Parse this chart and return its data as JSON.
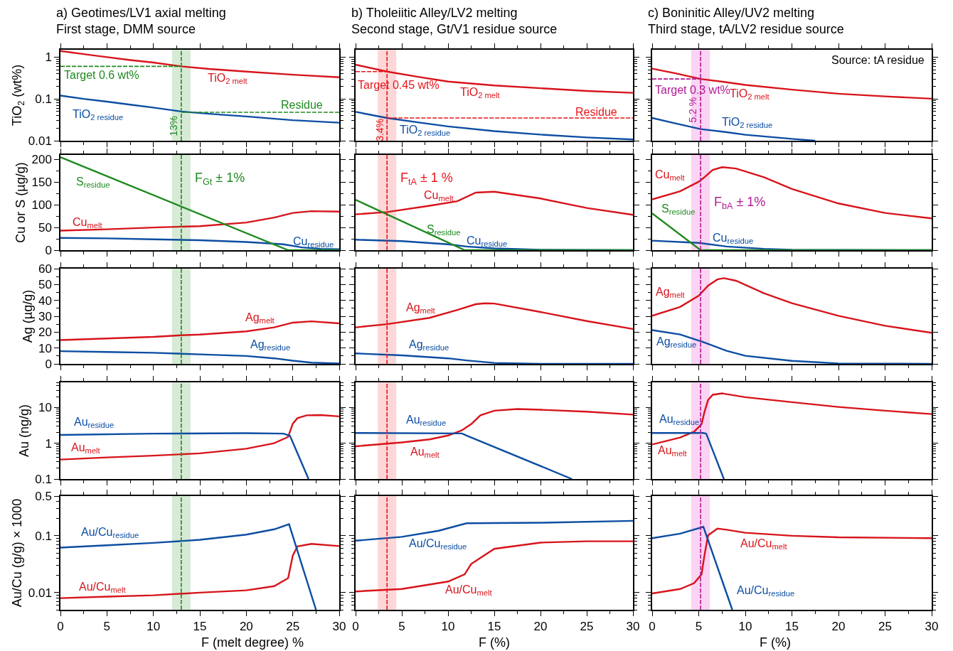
{
  "chart_data": [
    {
      "type": "line",
      "title": "a) Geotimes/LV1 axial melting",
      "subtitle": "First stage, DMM source",
      "ylabel": "TiO$_{2}$ (wt%)",
      "log": true,
      "xlim": [
        0,
        30
      ],
      "xticks": [
        0,
        5,
        10,
        15,
        20,
        25,
        30
      ],
      "ylim": [
        0.01,
        1.5
      ],
      "yticks": [
        0.01,
        0.1,
        1
      ],
      "tick_labels": "y",
      "series": [
        {
          "name": "TiO$_{2 melt}$",
          "color": "#d7141b",
          "x": [
            0,
            2.5,
            5,
            7.5,
            10,
            13,
            16,
            20,
            25,
            30
          ],
          "values": [
            1.4,
            1.18,
            1.0,
            0.85,
            0.74,
            0.6,
            0.52,
            0.45,
            0.38,
            0.33
          ]
        },
        {
          "name": "TiO$_{2 residue}$",
          "color": "#0c4da2",
          "x": [
            0,
            2.5,
            5,
            7.5,
            10,
            13,
            16,
            20,
            25,
            30
          ],
          "values": [
            0.12,
            0.1,
            0.086,
            0.073,
            0.062,
            0.05,
            0.044,
            0.038,
            0.031,
            0.027
          ]
        },
        {
          "name": "Target 0.6 wt%",
          "color": "#1f8a1f",
          "line_style": "dashed",
          "x": [
            0,
            13
          ],
          "values": [
            0.6,
            0.6
          ]
        },
        {
          "name": "Residue",
          "color": "#1f8a1f",
          "line_style": "dashed",
          "x": [
            13,
            30
          ],
          "values": [
            0.048,
            0.048
          ]
        }
      ],
      "ref_lines": [
        {
          "axis": "x",
          "value": 13,
          "label": "13%",
          "color": "#1f8a1f",
          "line_style": "dashed"
        }
      ],
      "bands": [
        {
          "axis": "x",
          "from": 12,
          "to": 14,
          "color": "#d6ead6"
        }
      ]
    },
    {
      "type": "line",
      "title": "b) Tholeiitic Alley/LV2 melting",
      "subtitle": "Second stage, Gt/V1 residue source",
      "log": true,
      "xlim": [
        0,
        30
      ],
      "xticks": [
        0,
        5,
        10,
        15,
        20,
        25,
        30
      ],
      "ylim": [
        0.01,
        1.5
      ],
      "yticks": [
        0.01,
        0.1,
        1
      ],
      "tick_labels": false,
      "series": [
        {
          "name": "TiO$_{2 melt}$",
          "color": "#d7141b",
          "x": [
            0,
            3.4,
            7,
            10,
            15,
            20,
            25,
            30
          ],
          "values": [
            0.66,
            0.45,
            0.33,
            0.26,
            0.21,
            0.18,
            0.155,
            0.14
          ]
        },
        {
          "name": "TiO$_{2 residue}$",
          "color": "#0c4da2",
          "x": [
            0,
            3.4,
            7,
            10,
            15,
            20,
            25,
            30
          ],
          "values": [
            0.049,
            0.035,
            0.027,
            0.022,
            0.017,
            0.014,
            0.012,
            0.0107
          ]
        },
        {
          "name": "Target 0.45 wt%",
          "color": "#e8151b",
          "line_style": "dashed",
          "x": [
            0,
            3.4
          ],
          "values": [
            0.45,
            0.45
          ]
        },
        {
          "name": "Residue",
          "color": "#e8151b",
          "line_style": "dashed",
          "x": [
            3.4,
            30
          ],
          "values": [
            0.035,
            0.035
          ]
        }
      ],
      "ref_lines": [
        {
          "axis": "x",
          "value": 3.4,
          "label": "3.4%",
          "color": "#e8151b",
          "line_style": "dashed"
        }
      ],
      "bands": [
        {
          "axis": "x",
          "from": 2.4,
          "to": 4.4,
          "color": "#fdd7d7"
        }
      ]
    },
    {
      "type": "line",
      "title": "c) Boninitic Alley/UV2 melting",
      "subtitle": "Third stage, tA/LV2 residue source",
      "log": true,
      "xlim": [
        0,
        30
      ],
      "xticks": [
        0,
        5,
        10,
        15,
        20,
        25,
        30
      ],
      "ylim": [
        0.01,
        1.5
      ],
      "yticks": [
        0.01,
        0.1,
        1
      ],
      "tick_labels": false,
      "series": [
        {
          "name": "TiO$_{2 melt}$",
          "color": "#d7141b",
          "x": [
            0,
            2.5,
            5.2,
            8,
            10,
            15,
            20,
            25,
            30
          ],
          "values": [
            0.53,
            0.41,
            0.3,
            0.25,
            0.216,
            0.167,
            0.133,
            0.115,
            0.101
          ]
        },
        {
          "name": "TiO$_{2 residue}$",
          "color": "#0c4da2",
          "x": [
            0,
            2.5,
            5.2,
            8,
            10,
            15,
            17.5
          ],
          "values": [
            0.035,
            0.026,
            0.019,
            0.016,
            0.0139,
            0.0111,
            0.01
          ]
        },
        {
          "name": "Target 0.3 wt%",
          "color": "#b01a94",
          "line_style": "dashed",
          "x": [
            0,
            5.2
          ],
          "values": [
            0.3,
            0.3
          ]
        }
      ],
      "ref_lines": [
        {
          "axis": "x",
          "value": 5.2,
          "label": "5.2 %",
          "color": "#b01a94",
          "line_style": "dashed"
        }
      ],
      "bands": [
        {
          "axis": "x",
          "from": 4.2,
          "to": 6.2,
          "color": "#fbd3f3"
        }
      ],
      "annotations": [
        "Source: tA residue"
      ]
    },
    {
      "type": "line",
      "ylabel": "Cu or S (µg/g)",
      "xlim": [
        0,
        30
      ],
      "xticks": [
        0,
        5,
        10,
        15,
        20,
        25,
        30
      ],
      "ylim": [
        0,
        210
      ],
      "yticks": [
        0,
        50,
        100,
        150,
        200
      ],
      "tick_labels": "y",
      "series": [
        {
          "name": "Cu$_{melt}$",
          "color": "#d7141b",
          "x": [
            0,
            5,
            10,
            15,
            20,
            23,
            25,
            27,
            30
          ],
          "values": [
            43,
            46,
            50,
            53,
            61,
            72,
            82,
            86,
            85
          ]
        },
        {
          "name": "Cu$_{residue}$",
          "color": "#0c4da2",
          "x": [
            0,
            5,
            10,
            15,
            20,
            24,
            26,
            28,
            30
          ],
          "values": [
            27,
            26,
            24,
            22,
            18,
            13,
            6,
            3,
            2
          ]
        },
        {
          "name": "S$_{residue}$",
          "color": "#1f8a1f",
          "x": [
            0,
            24.5,
            30
          ],
          "values": [
            205,
            0,
            0
          ]
        }
      ],
      "ref_lines": [
        {
          "axis": "x",
          "value": 13,
          "color": "#1f8a1f",
          "line_style": "dashed"
        }
      ],
      "bands": [
        {
          "axis": "x",
          "from": 12,
          "to": 14,
          "color": "#d6ead6",
          "label": "F$_{Gt}$ ± 1%"
        }
      ]
    },
    {
      "type": "line",
      "xlim": [
        0,
        30
      ],
      "xticks": [
        0,
        5,
        10,
        15,
        20,
        25,
        30
      ],
      "ylim": [
        0,
        210
      ],
      "yticks": [
        0,
        50,
        100,
        150,
        200
      ],
      "tick_labels": false,
      "series": [
        {
          "name": "Cu$_{melt}$",
          "color": "#d7141b",
          "x": [
            0,
            3.4,
            8,
            11,
            13,
            15,
            20,
            25,
            30
          ],
          "values": [
            79,
            84,
            98,
            108,
            127,
            129,
            114,
            93,
            78
          ]
        },
        {
          "name": "Cu$_{residue}$",
          "color": "#0c4da2",
          "x": [
            0,
            5,
            10,
            12,
            15,
            20,
            30
          ],
          "values": [
            23,
            20,
            13,
            8,
            4,
            1,
            0
          ]
        },
        {
          "name": "S$_{residue}$",
          "color": "#1f8a1f",
          "x": [
            0,
            11.8,
            30
          ],
          "values": [
            111,
            0,
            0
          ]
        }
      ],
      "ref_lines": [
        {
          "axis": "x",
          "value": 3.4,
          "color": "#e8151b",
          "line_style": "dashed"
        }
      ],
      "bands": [
        {
          "axis": "x",
          "from": 2.4,
          "to": 4.4,
          "color": "#fdd7d7",
          "label": "F$_{tA}$ ± 1 %"
        }
      ]
    },
    {
      "type": "line",
      "xlim": [
        0,
        30
      ],
      "xticks": [
        0,
        5,
        10,
        15,
        20,
        25,
        30
      ],
      "ylim": [
        0,
        210
      ],
      "yticks": [
        0,
        50,
        100,
        150,
        200
      ],
      "tick_labels": false,
      "series": [
        {
          "name": "Cu$_{melt}$",
          "color": "#d7141b",
          "x": [
            0,
            3,
            5,
            5.5,
            6.5,
            7.5,
            9,
            12,
            15,
            20,
            25,
            30
          ],
          "values": [
            112,
            130,
            151,
            159,
            177,
            183,
            180,
            161,
            135,
            103,
            82,
            70
          ]
        },
        {
          "name": "Cu$_{residue}$",
          "color": "#0c4da2",
          "x": [
            0,
            5,
            8,
            12,
            15,
            30
          ],
          "values": [
            21,
            16,
            8,
            3,
            1,
            0
          ]
        },
        {
          "name": "S$_{residue}$",
          "color": "#1f8a1f",
          "x": [
            0,
            5.2,
            30
          ],
          "values": [
            81,
            0,
            0
          ]
        }
      ],
      "ref_lines": [
        {
          "axis": "x",
          "value": 5.2,
          "color": "#b01a94",
          "line_style": "dashed"
        }
      ],
      "bands": [
        {
          "axis": "x",
          "from": 4.2,
          "to": 6.2,
          "color": "#fbd3f3",
          "label": "F$_{bA}$ ± 1%"
        }
      ]
    },
    {
      "type": "line",
      "ylabel": "Ag (µg/g)",
      "xlim": [
        0,
        30
      ],
      "xticks": [
        0,
        5,
        10,
        15,
        20,
        25,
        30
      ],
      "ylim": [
        0,
        60
      ],
      "yticks": [
        0,
        10,
        20,
        30,
        40,
        50,
        60
      ],
      "tick_labels": "y",
      "series": [
        {
          "name": "Ag$_{melt}$",
          "color": "#d7141b",
          "x": [
            0,
            5,
            10,
            13,
            15,
            20,
            23,
            25,
            27,
            30
          ],
          "values": [
            15,
            16,
            17,
            18,
            18.5,
            20.5,
            23,
            26,
            26.8,
            25.5
          ]
        },
        {
          "name": "Ag$_{residue}$",
          "color": "#0c4da2",
          "x": [
            0,
            5,
            10,
            15,
            20,
            23,
            25,
            27,
            30
          ],
          "values": [
            8,
            7.5,
            7,
            6,
            5,
            3.5,
            2,
            0.8,
            0.2
          ]
        }
      ],
      "ref_lines": [
        {
          "axis": "x",
          "value": 13,
          "color": "#1f8a1f",
          "line_style": "dashed"
        }
      ],
      "bands": [
        {
          "axis": "x",
          "from": 12,
          "to": 14,
          "color": "#d6ead6"
        }
      ]
    },
    {
      "type": "line",
      "xlim": [
        0,
        30
      ],
      "xticks": [
        0,
        5,
        10,
        15,
        20,
        25,
        30
      ],
      "ylim": [
        0,
        60
      ],
      "yticks": [
        0,
        10,
        20,
        30,
        40,
        50,
        60
      ],
      "tick_labels": false,
      "series": [
        {
          "name": "Ag$_{melt}$",
          "color": "#d7141b",
          "x": [
            0,
            3.4,
            8,
            11,
            13,
            14,
            15,
            20,
            25,
            30
          ],
          "values": [
            23,
            25,
            29,
            34,
            37.6,
            38.2,
            38,
            32.7,
            27,
            22
          ]
        },
        {
          "name": "Ag$_{residue}$",
          "color": "#0c4da2",
          "x": [
            0,
            5,
            10,
            12,
            15,
            20,
            30
          ],
          "values": [
            6.6,
            5.4,
            3.5,
            2.2,
            0.6,
            0,
            0
          ]
        }
      ],
      "ref_lines": [
        {
          "axis": "x",
          "value": 3.4,
          "color": "#e8151b",
          "line_style": "dashed"
        }
      ],
      "bands": [
        {
          "axis": "x",
          "from": 2.4,
          "to": 4.4,
          "color": "#fdd7d7"
        }
      ]
    },
    {
      "type": "line",
      "xlim": [
        0,
        30
      ],
      "xticks": [
        0,
        5,
        10,
        15,
        20,
        25,
        30
      ],
      "ylim": [
        0,
        60
      ],
      "yticks": [
        0,
        10,
        20,
        30,
        40,
        50,
        60
      ],
      "tick_labels": false,
      "series": [
        {
          "name": "Ag$_{melt}$",
          "color": "#d7141b",
          "x": [
            0,
            3,
            5,
            6,
            7,
            7.7,
            9,
            12,
            15,
            20,
            25,
            30
          ],
          "values": [
            30.3,
            35.9,
            43,
            49.3,
            53.2,
            54,
            52.4,
            44.5,
            38.2,
            30.3,
            24,
            19.6
          ]
        },
        {
          "name": "Ag$_{residue}$",
          "color": "#0c4da2",
          "x": [
            0,
            3,
            5.5,
            8,
            10,
            15,
            20,
            30
          ],
          "values": [
            21.3,
            18.5,
            13.7,
            8.2,
            5.1,
            1.9,
            0.3,
            0
          ]
        }
      ],
      "ref_lines": [
        {
          "axis": "x",
          "value": 5.2,
          "color": "#b01a94",
          "line_style": "dashed"
        }
      ],
      "bands": [
        {
          "axis": "x",
          "from": 4.2,
          "to": 6.2,
          "color": "#fbd3f3"
        }
      ]
    },
    {
      "type": "line",
      "ylabel": "Au (ng/g)",
      "log": true,
      "xlim": [
        0,
        30
      ],
      "xticks": [
        0,
        5,
        10,
        15,
        20,
        25,
        30
      ],
      "ylim": [
        0.1,
        50
      ],
      "yticks": [
        0.1,
        1,
        10
      ],
      "tick_labels": "y",
      "series": [
        {
          "name": "Au$_{melt}$",
          "color": "#d7141b",
          "x": [
            0,
            5,
            10,
            15,
            20,
            23,
            24.5,
            25,
            25.5,
            26.5,
            28,
            30
          ],
          "values": [
            0.35,
            0.4,
            0.45,
            0.52,
            0.7,
            1.0,
            1.5,
            3.5,
            5,
            6,
            6.1,
            5.6
          ]
        },
        {
          "name": "Au$_{residue}$",
          "color": "#0c4da2",
          "x": [
            0,
            10,
            20,
            24,
            24.7,
            26.7
          ],
          "values": [
            1.7,
            1.85,
            1.9,
            1.85,
            1.6,
            0.1
          ]
        }
      ],
      "ref_lines": [
        {
          "axis": "x",
          "value": 13,
          "color": "#1f8a1f",
          "line_style": "dashed"
        }
      ],
      "bands": [
        {
          "axis": "x",
          "from": 12,
          "to": 14,
          "color": "#d6ead6"
        }
      ]
    },
    {
      "type": "line",
      "log": true,
      "xlim": [
        0,
        30
      ],
      "xticks": [
        0,
        5,
        10,
        15,
        20,
        25,
        30
      ],
      "ylim": [
        0.1,
        50
      ],
      "yticks": [
        0.1,
        1,
        10
      ],
      "tick_labels": false,
      "series": [
        {
          "name": "Au$_{melt}$",
          "color": "#d7141b",
          "x": [
            0,
            5,
            8,
            10,
            11.5,
            12.5,
            13.5,
            15,
            17.5,
            20,
            25,
            30
          ],
          "values": [
            0.82,
            1.05,
            1.28,
            1.64,
            2.3,
            3.4,
            6,
            8.1,
            9,
            8.6,
            7.6,
            6.3
          ]
        },
        {
          "name": "Au$_{residue}$",
          "color": "#0c4da2",
          "x": [
            0,
            11.5,
            12,
            23.4
          ],
          "values": [
            1.93,
            1.87,
            1.64,
            0.1
          ]
        }
      ],
      "ref_lines": [
        {
          "axis": "x",
          "value": 3.4,
          "color": "#e8151b",
          "line_style": "dashed"
        }
      ],
      "bands": [
        {
          "axis": "x",
          "from": 2.4,
          "to": 4.4,
          "color": "#fdd7d7"
        }
      ]
    },
    {
      "type": "line",
      "log": true,
      "xlim": [
        0,
        30
      ],
      "xticks": [
        0,
        5,
        10,
        15,
        20,
        25,
        30
      ],
      "ylim": [
        0.1,
        50
      ],
      "yticks": [
        0.1,
        1,
        10
      ],
      "tick_labels": false,
      "series": [
        {
          "name": "Au$_{melt}$",
          "color": "#d7141b",
          "x": [
            0,
            3,
            4.5,
            5.3,
            5.6,
            6,
            6.5,
            7.5,
            10,
            15,
            20,
            25,
            30
          ],
          "values": [
            0.92,
            1.44,
            2.1,
            3.4,
            7.2,
            16,
            22.5,
            24.6,
            19.3,
            14,
            10.3,
            8.1,
            6.5
          ]
        },
        {
          "name": "Au$_{residue}$",
          "color": "#0c4da2",
          "x": [
            0,
            5.5,
            5.8,
            7.7
          ],
          "values": [
            1.93,
            1.93,
            1.85,
            0.1
          ]
        }
      ],
      "ref_lines": [
        {
          "axis": "x",
          "value": 5.2,
          "color": "#b01a94",
          "line_style": "dashed"
        }
      ],
      "bands": [
        {
          "axis": "x",
          "from": 4.2,
          "to": 6.2,
          "color": "#fbd3f3"
        }
      ]
    },
    {
      "type": "line",
      "ylabel": "Au/Cu (g/g) × 1000",
      "xlabel": "F (melt degree) %",
      "log": true,
      "xlim": [
        0,
        30
      ],
      "xticks": [
        0,
        5,
        10,
        15,
        20,
        25,
        30
      ],
      "ylim": [
        0.005,
        0.5
      ],
      "yticks": [
        0.01,
        0.1,
        0.5
      ],
      "series": [
        {
          "name": "Au/Cu$_{melt}$",
          "color": "#d7141b",
          "x": [
            0,
            5,
            10,
            15,
            20,
            23,
            24.5,
            25,
            25.5,
            27,
            30
          ],
          "values": [
            0.008,
            0.0085,
            0.009,
            0.01,
            0.011,
            0.013,
            0.018,
            0.045,
            0.065,
            0.072,
            0.066
          ]
        },
        {
          "name": "Au/Cu$_{residue}$",
          "color": "#0c4da2",
          "x": [
            0,
            5,
            10,
            15,
            20,
            23,
            24.6,
            27.5
          ],
          "values": [
            0.062,
            0.068,
            0.075,
            0.085,
            0.105,
            0.13,
            0.16,
            0.005
          ]
        }
      ],
      "ref_lines": [
        {
          "axis": "x",
          "value": 13,
          "color": "#1f8a1f",
          "line_style": "dashed"
        }
      ],
      "bands": [
        {
          "axis": "x",
          "from": 12,
          "to": 14,
          "color": "#d6ead6"
        }
      ]
    },
    {
      "type": "line",
      "xlabel": "F (%)",
      "log": true,
      "xlim": [
        0,
        30
      ],
      "xticks": [
        0,
        5,
        10,
        15,
        20,
        25,
        30
      ],
      "ylim": [
        0.005,
        0.5
      ],
      "yticks": [
        0.01,
        0.1,
        0.5
      ],
      "tick_labels": "x",
      "series": [
        {
          "name": "Au/Cu$_{melt}$",
          "color": "#d7141b",
          "x": [
            0,
            5,
            10,
            11.8,
            12.5,
            15,
            20,
            25,
            30
          ],
          "values": [
            0.0105,
            0.0116,
            0.0157,
            0.021,
            0.032,
            0.059,
            0.076,
            0.08,
            0.08
          ]
        },
        {
          "name": "Au/Cu$_{residue}$",
          "color": "#0c4da2",
          "x": [
            0,
            5,
            9,
            12,
            20,
            30
          ],
          "values": [
            0.082,
            0.096,
            0.123,
            0.166,
            0.17,
            0.183
          ]
        }
      ],
      "ref_lines": [
        {
          "axis": "x",
          "value": 3.4,
          "color": "#e8151b",
          "line_style": "dashed"
        }
      ],
      "bands": [
        {
          "axis": "x",
          "from": 2.4,
          "to": 4.4,
          "color": "#fdd7d7"
        }
      ]
    },
    {
      "type": "line",
      "xlabel": "F (%)",
      "log": true,
      "xlim": [
        0,
        30
      ],
      "xticks": [
        0,
        5,
        10,
        15,
        20,
        25,
        30
      ],
      "ylim": [
        0.005,
        0.5
      ],
      "yticks": [
        0.01,
        0.1,
        0.5
      ],
      "tick_labels": "x",
      "series": [
        {
          "name": "Au/Cu$_{melt}$",
          "color": "#d7141b",
          "x": [
            0,
            3,
            4.5,
            5.3,
            5.6,
            6,
            7,
            8,
            10,
            15,
            20,
            30
          ],
          "values": [
            0.0097,
            0.0116,
            0.0147,
            0.021,
            0.044,
            0.102,
            0.134,
            0.128,
            0.113,
            0.1,
            0.094,
            0.091
          ]
        },
        {
          "name": "Au/Cu$_{residue}$",
          "color": "#0c4da2",
          "x": [
            0,
            3,
            5.5,
            8.6
          ],
          "values": [
            0.091,
            0.109,
            0.144,
            0.005
          ]
        }
      ],
      "ref_lines": [
        {
          "axis": "x",
          "value": 5.2,
          "color": "#b01a94",
          "line_style": "dashed"
        }
      ],
      "bands": [
        {
          "axis": "x",
          "from": 4.2,
          "to": 6.2,
          "color": "#fbd3f3"
        }
      ]
    }
  ]
}
